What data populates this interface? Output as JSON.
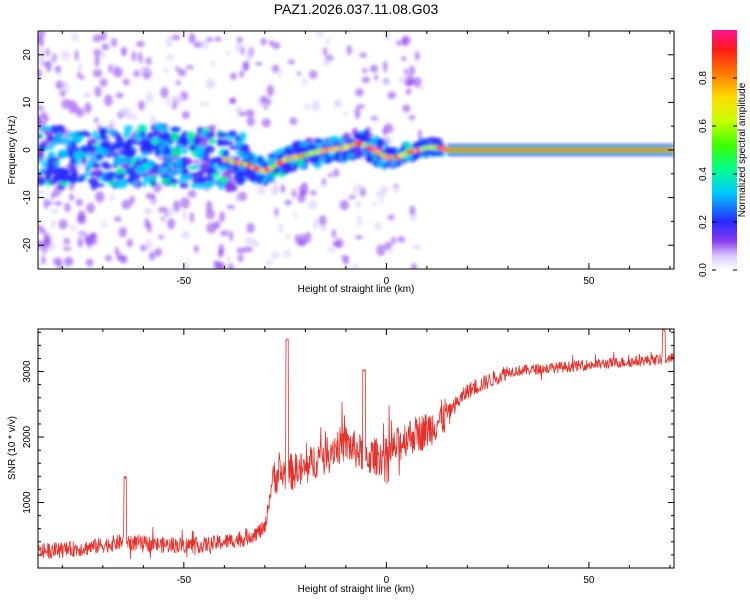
{
  "title": "PAZ1.2026.037.11.08.G03",
  "colors": {
    "snr_line": "#e8302a",
    "background": "#ffffff",
    "axis": "#000000"
  },
  "chart_data": [
    {
      "type": "heatmap",
      "name": "spectrogram",
      "xlabel": "Height of straight line (km)",
      "ylabel": "Frequency (Hz)",
      "xlim": [
        -86,
        71
      ],
      "ylim": [
        -25,
        25
      ],
      "xticks": [
        -50,
        0,
        50
      ],
      "xtick_labels": [
        "-50",
        "0",
        "50"
      ],
      "yticks": [
        -20,
        -10,
        0,
        10,
        20
      ],
      "ytick_labels": [
        "-20",
        "-10",
        "0",
        "10",
        "20"
      ],
      "ridge": {
        "x": [
          -85,
          -75,
          -65,
          -55,
          -50,
          -45,
          -40,
          -35,
          -30,
          -25,
          -20,
          -15,
          -10,
          -7,
          -5,
          -3,
          0,
          3,
          5,
          8,
          10,
          13,
          15,
          30,
          50,
          71
        ],
        "freq": [
          -1,
          -2,
          -1.5,
          -1,
          -2,
          -1.5,
          -2,
          -3,
          -4.5,
          -2,
          -1,
          0,
          0.5,
          1.5,
          1,
          0,
          -1.5,
          -1.5,
          -0.5,
          0,
          0.5,
          0.5,
          0,
          0,
          0,
          0
        ]
      },
      "colorbar": {
        "label": "Normalized spectral amplitude",
        "ticks": [
          0.0,
          0.2,
          0.4,
          0.6,
          0.8
        ],
        "tick_labels": [
          "0.0",
          "0.2",
          "0.4",
          "0.6",
          "0.8"
        ],
        "range": [
          0,
          1
        ]
      }
    },
    {
      "type": "line",
      "name": "snr",
      "xlabel": "Height of straight line (km)",
      "ylabel": "SNR (10 * v/v)",
      "xlim": [
        -86,
        71
      ],
      "ylim": [
        0,
        3650
      ],
      "xticks": [
        -50,
        0,
        50
      ],
      "xtick_labels": [
        "-50",
        "0",
        "50"
      ],
      "yticks": [
        1000,
        2000,
        3000
      ],
      "ytick_labels": [
        "1000",
        "2000",
        "3000"
      ],
      "envelope": {
        "x": [
          -86,
          -75,
          -65,
          -55,
          -45,
          -35,
          -30,
          -28,
          -25,
          -20,
          -15,
          -10,
          -5,
          0,
          5,
          10,
          15,
          20,
          25,
          30,
          40,
          50,
          60,
          71
        ],
        "y": [
          250,
          300,
          400,
          350,
          350,
          450,
          600,
          1400,
          1450,
          1500,
          1800,
          1900,
          1700,
          1700,
          2000,
          2100,
          2350,
          2700,
          2850,
          3000,
          3050,
          3100,
          3150,
          3200
        ]
      },
      "spikes": [
        {
          "x": -64.5,
          "y": 1400
        },
        {
          "x": -24.5,
          "y": 3500
        },
        {
          "x": -5.5,
          "y": 3050
        },
        {
          "x": 68.5,
          "y": 3650
        }
      ]
    }
  ]
}
